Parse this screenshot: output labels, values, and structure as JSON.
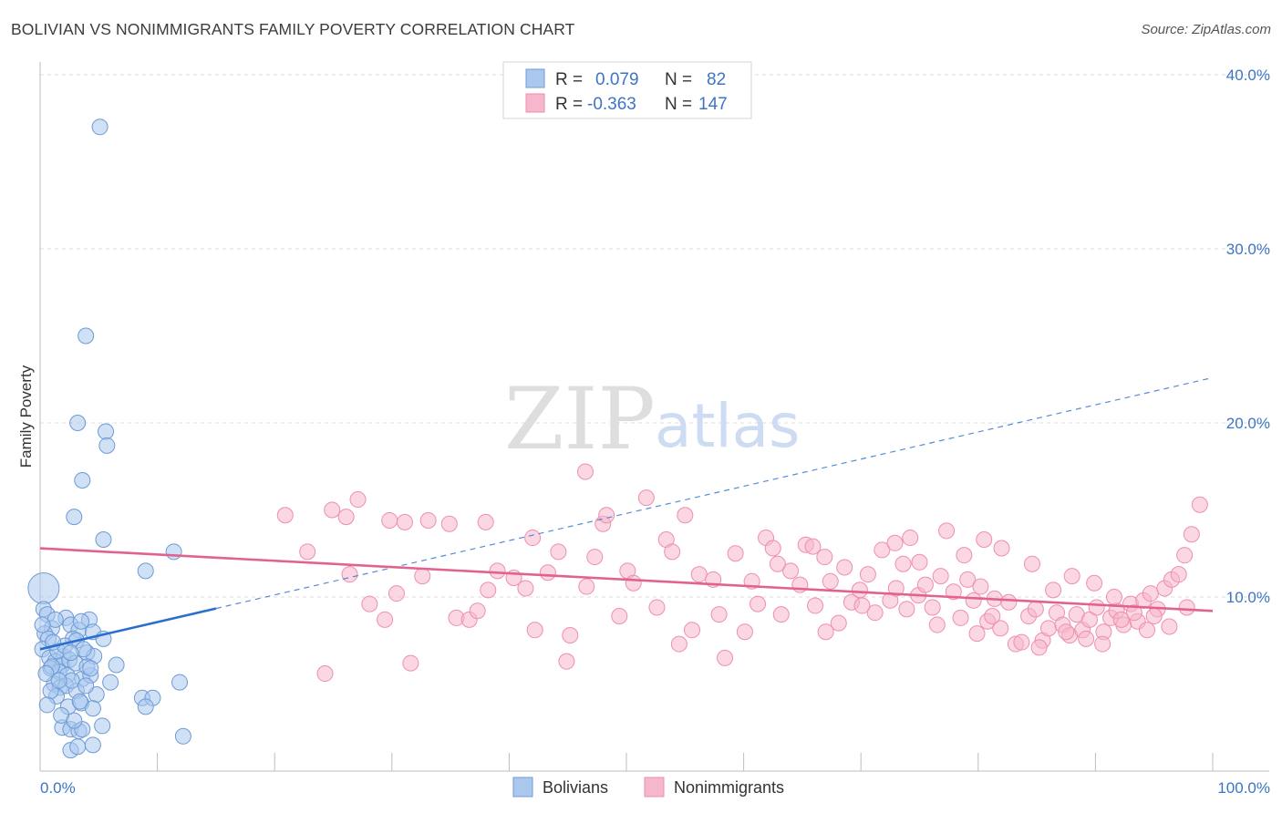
{
  "title": "BOLIVIAN VS NONIMMIGRANTS FAMILY POVERTY CORRELATION CHART",
  "source": "Source: ZipAtlas.com",
  "watermark": {
    "zip": "ZIP",
    "atlas": "atlas"
  },
  "colors": {
    "blue_fill": "#aac8ee",
    "blue_stroke": "#6d9ad6",
    "blue_line": "#2a6fd0",
    "pink_fill": "#f6b6cb",
    "pink_stroke": "#ee8fae",
    "pink_line": "#e2628f",
    "grid": "#dcdcdc",
    "accent_text": "#3d74c6"
  },
  "stats": [
    {
      "r_label": "R =",
      "r_value": "0.079",
      "n_label": "N =",
      "n_value": "82"
    },
    {
      "r_label": "R =",
      "r_value": "-0.363",
      "n_label": "N =",
      "n_value": "147"
    }
  ],
  "chart_data": {
    "type": "scatter",
    "title": "BOLIVIAN VS NONIMMIGRANTS FAMILY POVERTY CORRELATION CHART",
    "xlabel": "",
    "ylabel": "Family Poverty",
    "xlim": [
      0,
      100
    ],
    "ylim": [
      0,
      41
    ],
    "x_tick_labels": [
      "0.0%",
      "100.0%"
    ],
    "y_ticks": [
      10,
      20,
      30,
      40
    ],
    "y_tick_labels": [
      "10.0%",
      "20.0%",
      "30.0%",
      "40.0%"
    ],
    "grid": true,
    "legend_position": "bottom-center",
    "series": [
      {
        "name": "Bolivians",
        "color": "#aac8ee",
        "trend": {
          "x": [
            0,
            100
          ],
          "y": [
            7.0,
            22.6
          ],
          "solid_until_x": 15
        },
        "points": [
          {
            "x": 0.3,
            "y": 10.5,
            "big": true
          },
          {
            "x": 5.1,
            "y": 37.0
          },
          {
            "x": 3.9,
            "y": 25.0
          },
          {
            "x": 3.2,
            "y": 20.0
          },
          {
            "x": 5.6,
            "y": 19.5
          },
          {
            "x": 5.7,
            "y": 18.7
          },
          {
            "x": 3.6,
            "y": 16.7
          },
          {
            "x": 2.9,
            "y": 14.6
          },
          {
            "x": 5.4,
            "y": 13.3
          },
          {
            "x": 11.4,
            "y": 12.6
          },
          {
            "x": 9.0,
            "y": 11.5
          },
          {
            "x": 0.3,
            "y": 9.3
          },
          {
            "x": 0.6,
            "y": 9.0
          },
          {
            "x": 2.2,
            "y": 8.8
          },
          {
            "x": 4.2,
            "y": 8.7
          },
          {
            "x": 1.0,
            "y": 8.2
          },
          {
            "x": 2.6,
            "y": 8.4
          },
          {
            "x": 3.3,
            "y": 8.1
          },
          {
            "x": 3.5,
            "y": 8.6
          },
          {
            "x": 4.5,
            "y": 8.0
          },
          {
            "x": 0.4,
            "y": 7.9
          },
          {
            "x": 0.7,
            "y": 7.6
          },
          {
            "x": 2.8,
            "y": 7.6
          },
          {
            "x": 3.1,
            "y": 7.5
          },
          {
            "x": 5.4,
            "y": 7.6
          },
          {
            "x": 0.2,
            "y": 7.0
          },
          {
            "x": 2.0,
            "y": 6.6
          },
          {
            "x": 4.0,
            "y": 6.8
          },
          {
            "x": 4.6,
            "y": 6.6
          },
          {
            "x": 0.8,
            "y": 6.5
          },
          {
            "x": 1.3,
            "y": 6.3
          },
          {
            "x": 1.9,
            "y": 6.1
          },
          {
            "x": 2.5,
            "y": 6.4
          },
          {
            "x": 3.0,
            "y": 6.2
          },
          {
            "x": 6.5,
            "y": 6.1
          },
          {
            "x": 0.9,
            "y": 5.9
          },
          {
            "x": 1.6,
            "y": 5.7
          },
          {
            "x": 2.3,
            "y": 5.5
          },
          {
            "x": 3.6,
            "y": 5.3
          },
          {
            "x": 4.3,
            "y": 5.5
          },
          {
            "x": 6.0,
            "y": 5.1
          },
          {
            "x": 11.9,
            "y": 5.1
          },
          {
            "x": 1.2,
            "y": 5.0
          },
          {
            "x": 1.7,
            "y": 4.8
          },
          {
            "x": 2.2,
            "y": 4.9
          },
          {
            "x": 3.1,
            "y": 4.6
          },
          {
            "x": 4.8,
            "y": 4.4
          },
          {
            "x": 8.7,
            "y": 4.2
          },
          {
            "x": 9.6,
            "y": 4.2
          },
          {
            "x": 1.4,
            "y": 4.3
          },
          {
            "x": 2.4,
            "y": 3.7
          },
          {
            "x": 3.5,
            "y": 3.9
          },
          {
            "x": 4.5,
            "y": 3.6
          },
          {
            "x": 9.0,
            "y": 3.7
          },
          {
            "x": 1.9,
            "y": 2.5
          },
          {
            "x": 2.6,
            "y": 2.4
          },
          {
            "x": 3.3,
            "y": 2.3
          },
          {
            "x": 3.6,
            "y": 2.4
          },
          {
            "x": 5.3,
            "y": 2.6
          },
          {
            "x": 12.2,
            "y": 2.0
          },
          {
            "x": 2.6,
            "y": 1.2
          },
          {
            "x": 3.2,
            "y": 1.4
          },
          {
            "x": 4.5,
            "y": 1.5
          },
          {
            "x": 1.0,
            "y": 6.0
          },
          {
            "x": 1.5,
            "y": 6.9
          },
          {
            "x": 0.5,
            "y": 5.6
          },
          {
            "x": 2.7,
            "y": 5.2
          },
          {
            "x": 3.9,
            "y": 4.9
          },
          {
            "x": 0.9,
            "y": 4.6
          },
          {
            "x": 1.8,
            "y": 3.2
          },
          {
            "x": 2.9,
            "y": 2.9
          },
          {
            "x": 0.6,
            "y": 3.8
          },
          {
            "x": 4.0,
            "y": 6.0
          },
          {
            "x": 1.3,
            "y": 8.7
          },
          {
            "x": 2.1,
            "y": 7.2
          },
          {
            "x": 3.7,
            "y": 7.0
          },
          {
            "x": 0.2,
            "y": 8.4
          },
          {
            "x": 1.1,
            "y": 7.4
          },
          {
            "x": 4.3,
            "y": 5.9
          },
          {
            "x": 2.6,
            "y": 6.8
          },
          {
            "x": 1.6,
            "y": 5.2
          },
          {
            "x": 3.4,
            "y": 4.0
          }
        ]
      },
      {
        "name": "Nonimmigrants",
        "color": "#f6b6cb",
        "trend": {
          "x": [
            0,
            100
          ],
          "y": [
            12.8,
            9.2
          ]
        },
        "points": [
          {
            "x": 20.9,
            "y": 14.7
          },
          {
            "x": 24.9,
            "y": 15.0
          },
          {
            "x": 26.1,
            "y": 14.6
          },
          {
            "x": 27.1,
            "y": 15.6
          },
          {
            "x": 28.1,
            "y": 9.6
          },
          {
            "x": 29.8,
            "y": 14.4
          },
          {
            "x": 31.1,
            "y": 14.3
          },
          {
            "x": 33.1,
            "y": 14.4
          },
          {
            "x": 34.9,
            "y": 14.2
          },
          {
            "x": 35.5,
            "y": 8.8
          },
          {
            "x": 36.6,
            "y": 8.7
          },
          {
            "x": 37.3,
            "y": 9.2
          },
          {
            "x": 38.0,
            "y": 14.3
          },
          {
            "x": 38.2,
            "y": 10.4
          },
          {
            "x": 39.0,
            "y": 11.5
          },
          {
            "x": 40.4,
            "y": 11.1
          },
          {
            "x": 31.6,
            "y": 6.2
          },
          {
            "x": 24.3,
            "y": 5.6
          },
          {
            "x": 22.8,
            "y": 12.6
          },
          {
            "x": 26.4,
            "y": 11.3
          },
          {
            "x": 29.4,
            "y": 8.7
          },
          {
            "x": 30.4,
            "y": 10.2
          },
          {
            "x": 32.6,
            "y": 11.2
          },
          {
            "x": 41.4,
            "y": 10.5
          },
          {
            "x": 42.0,
            "y": 13.4
          },
          {
            "x": 42.2,
            "y": 8.1
          },
          {
            "x": 43.3,
            "y": 11.4
          },
          {
            "x": 44.2,
            "y": 12.6
          },
          {
            "x": 44.9,
            "y": 6.3
          },
          {
            "x": 45.2,
            "y": 7.8
          },
          {
            "x": 46.5,
            "y": 17.2
          },
          {
            "x": 46.6,
            "y": 10.6
          },
          {
            "x": 47.3,
            "y": 12.3
          },
          {
            "x": 48.0,
            "y": 14.2
          },
          {
            "x": 48.3,
            "y": 14.7
          },
          {
            "x": 49.4,
            "y": 8.9
          },
          {
            "x": 50.1,
            "y": 11.5
          },
          {
            "x": 50.6,
            "y": 10.8
          },
          {
            "x": 51.7,
            "y": 15.7
          },
          {
            "x": 52.6,
            "y": 9.4
          },
          {
            "x": 53.4,
            "y": 13.3
          },
          {
            "x": 53.9,
            "y": 12.6
          },
          {
            "x": 54.5,
            "y": 7.3
          },
          {
            "x": 55.0,
            "y": 14.7
          },
          {
            "x": 55.6,
            "y": 8.1
          },
          {
            "x": 56.2,
            "y": 11.3
          },
          {
            "x": 57.4,
            "y": 11.0
          },
          {
            "x": 57.9,
            "y": 9.0
          },
          {
            "x": 58.4,
            "y": 6.5
          },
          {
            "x": 59.3,
            "y": 12.5
          },
          {
            "x": 60.1,
            "y": 8.0
          },
          {
            "x": 60.7,
            "y": 10.9
          },
          {
            "x": 61.2,
            "y": 9.6
          },
          {
            "x": 61.9,
            "y": 13.4
          },
          {
            "x": 62.5,
            "y": 12.8
          },
          {
            "x": 63.2,
            "y": 9.0
          },
          {
            "x": 64.0,
            "y": 11.5
          },
          {
            "x": 64.8,
            "y": 10.7
          },
          {
            "x": 65.3,
            "y": 13.0
          },
          {
            "x": 66.1,
            "y": 9.5
          },
          {
            "x": 66.9,
            "y": 12.3
          },
          {
            "x": 67.4,
            "y": 10.9
          },
          {
            "x": 68.1,
            "y": 8.5
          },
          {
            "x": 68.6,
            "y": 11.7
          },
          {
            "x": 69.2,
            "y": 9.7
          },
          {
            "x": 69.9,
            "y": 10.4
          },
          {
            "x": 70.6,
            "y": 11.3
          },
          {
            "x": 71.2,
            "y": 9.1
          },
          {
            "x": 71.8,
            "y": 12.7
          },
          {
            "x": 72.5,
            "y": 9.8
          },
          {
            "x": 73.0,
            "y": 10.5
          },
          {
            "x": 73.6,
            "y": 11.9
          },
          {
            "x": 74.2,
            "y": 13.4
          },
          {
            "x": 74.9,
            "y": 10.1
          },
          {
            "x": 75.5,
            "y": 10.7
          },
          {
            "x": 76.1,
            "y": 9.4
          },
          {
            "x": 76.8,
            "y": 11.2
          },
          {
            "x": 77.3,
            "y": 13.8
          },
          {
            "x": 77.9,
            "y": 10.3
          },
          {
            "x": 78.5,
            "y": 8.8
          },
          {
            "x": 79.1,
            "y": 11.0
          },
          {
            "x": 79.6,
            "y": 9.8
          },
          {
            "x": 80.2,
            "y": 10.6
          },
          {
            "x": 80.8,
            "y": 8.6
          },
          {
            "x": 81.4,
            "y": 9.9
          },
          {
            "x": 81.9,
            "y": 8.2
          },
          {
            "x": 82.6,
            "y": 9.7
          },
          {
            "x": 83.2,
            "y": 7.3
          },
          {
            "x": 83.7,
            "y": 7.4
          },
          {
            "x": 84.3,
            "y": 8.9
          },
          {
            "x": 84.9,
            "y": 9.3
          },
          {
            "x": 85.5,
            "y": 7.5
          },
          {
            "x": 86.0,
            "y": 8.2
          },
          {
            "x": 86.7,
            "y": 9.1
          },
          {
            "x": 87.2,
            "y": 8.4
          },
          {
            "x": 87.8,
            "y": 7.8
          },
          {
            "x": 88.4,
            "y": 9.0
          },
          {
            "x": 88.9,
            "y": 8.1
          },
          {
            "x": 89.5,
            "y": 8.7
          },
          {
            "x": 90.1,
            "y": 9.4
          },
          {
            "x": 90.7,
            "y": 8.0
          },
          {
            "x": 91.3,
            "y": 8.8
          },
          {
            "x": 91.8,
            "y": 9.2
          },
          {
            "x": 92.4,
            "y": 8.4
          },
          {
            "x": 93.0,
            "y": 9.6
          },
          {
            "x": 93.6,
            "y": 8.6
          },
          {
            "x": 94.1,
            "y": 9.8
          },
          {
            "x": 94.7,
            "y": 10.2
          },
          {
            "x": 95.3,
            "y": 9.3
          },
          {
            "x": 95.9,
            "y": 10.5
          },
          {
            "x": 96.5,
            "y": 11.0
          },
          {
            "x": 97.1,
            "y": 11.3
          },
          {
            "x": 97.6,
            "y": 12.4
          },
          {
            "x": 98.2,
            "y": 13.6
          },
          {
            "x": 98.9,
            "y": 15.3
          },
          {
            "x": 62.9,
            "y": 11.9
          },
          {
            "x": 65.9,
            "y": 12.9
          },
          {
            "x": 67.0,
            "y": 8.0
          },
          {
            "x": 70.1,
            "y": 9.5
          },
          {
            "x": 72.9,
            "y": 13.1
          },
          {
            "x": 75.0,
            "y": 12.0
          },
          {
            "x": 78.8,
            "y": 12.4
          },
          {
            "x": 80.5,
            "y": 13.3
          },
          {
            "x": 82.0,
            "y": 12.8
          },
          {
            "x": 84.6,
            "y": 11.9
          },
          {
            "x": 86.4,
            "y": 10.4
          },
          {
            "x": 88.0,
            "y": 11.2
          },
          {
            "x": 89.9,
            "y": 10.8
          },
          {
            "x": 91.6,
            "y": 10.0
          },
          {
            "x": 93.3,
            "y": 9.1
          },
          {
            "x": 95.0,
            "y": 8.9
          },
          {
            "x": 96.3,
            "y": 8.3
          },
          {
            "x": 97.8,
            "y": 9.4
          },
          {
            "x": 85.2,
            "y": 7.1
          },
          {
            "x": 87.5,
            "y": 8.0
          },
          {
            "x": 89.2,
            "y": 7.6
          },
          {
            "x": 90.6,
            "y": 7.3
          },
          {
            "x": 92.2,
            "y": 8.7
          },
          {
            "x": 94.4,
            "y": 8.1
          },
          {
            "x": 79.9,
            "y": 7.9
          },
          {
            "x": 81.2,
            "y": 8.9
          },
          {
            "x": 76.5,
            "y": 8.4
          },
          {
            "x": 73.9,
            "y": 9.3
          }
        ]
      }
    ]
  }
}
